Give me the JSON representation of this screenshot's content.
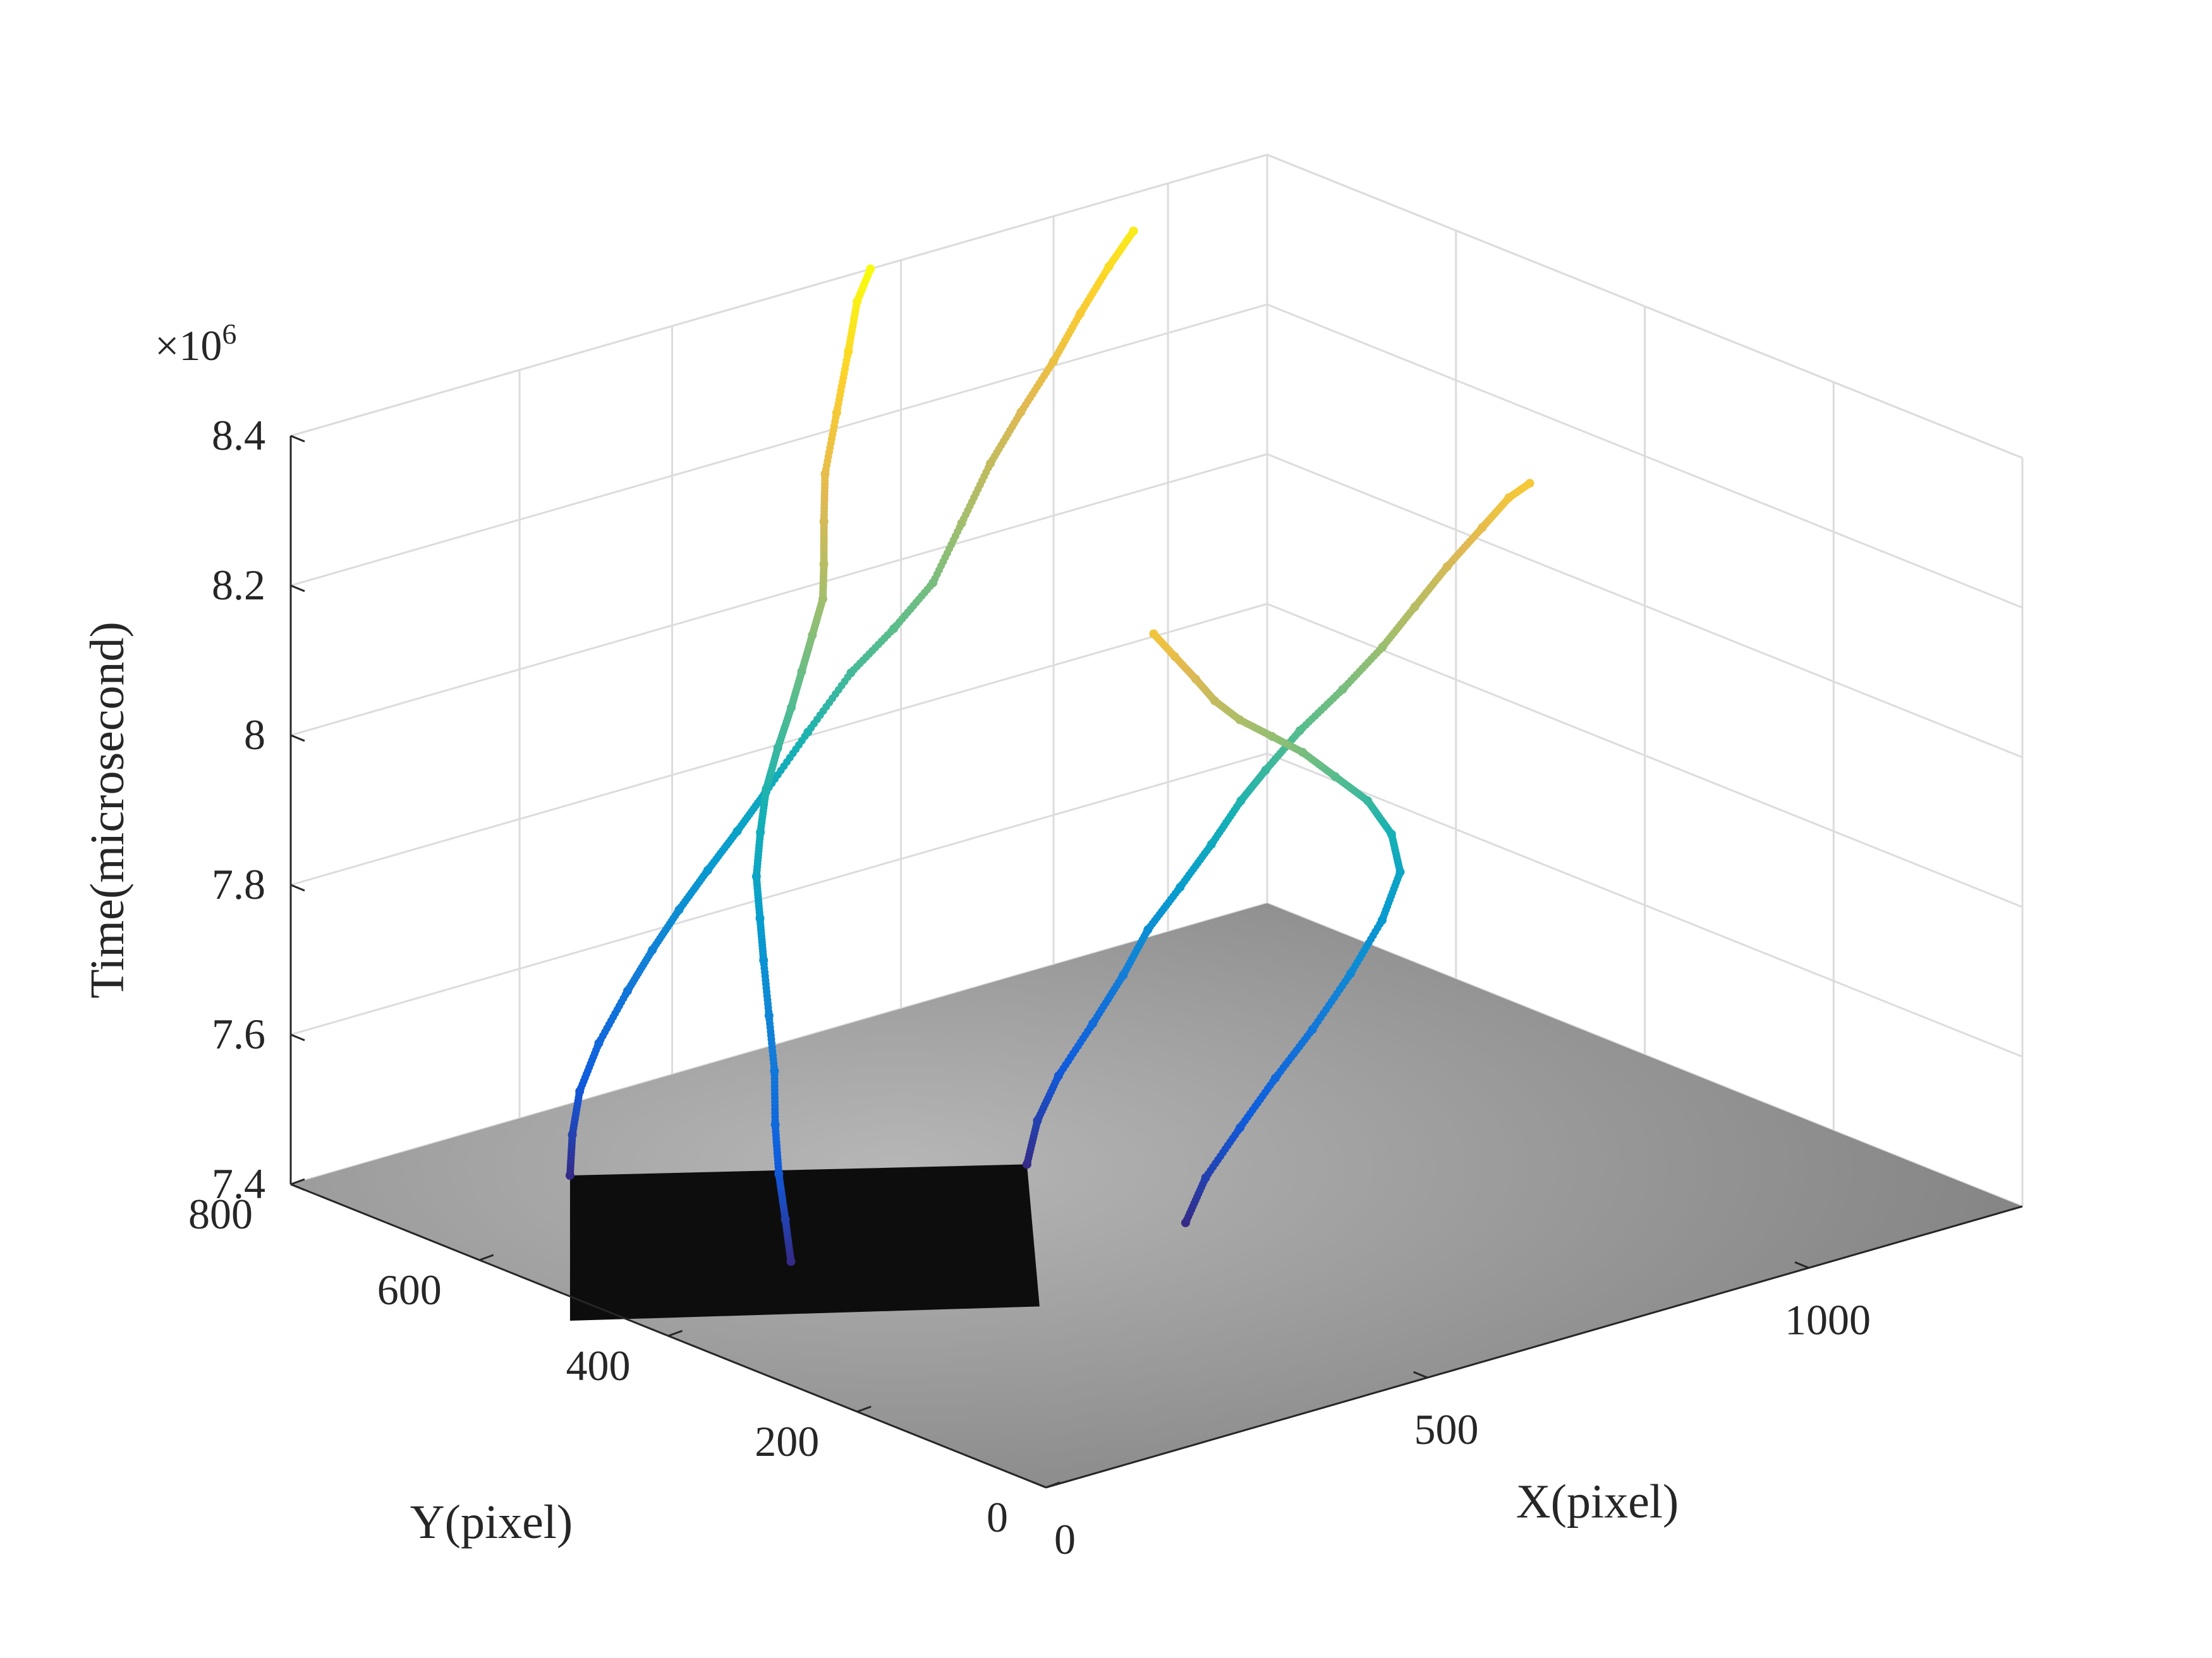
{
  "chart_data": {
    "type": "scatter3d",
    "xlabel": "X(pixel)",
    "ylabel": "Y(pixel)",
    "zlabel": "Time(microsecond)",
    "zexponent": "×10",
    "zexponent_power": "6",
    "xlim": [
      0,
      1280
    ],
    "ylim": [
      0,
      800
    ],
    "zlim": [
      7.4,
      8.4
    ],
    "xticks": [
      0,
      500,
      1000
    ],
    "xtick_labels": [
      "0",
      "500",
      "1000"
    ],
    "yticks": [
      0,
      200,
      400,
      600,
      800
    ],
    "ytick_labels": [
      "0",
      "200",
      "400",
      "600",
      "800"
    ],
    "zticks": [
      7.4,
      7.6,
      7.8,
      8.0,
      8.2,
      8.4
    ],
    "ztick_labels": [
      "7.4",
      "7.6",
      "7.8",
      "8",
      "8.2",
      "8.4"
    ],
    "grid": true,
    "colormap": "parula",
    "color_by": "time",
    "colors": {
      "floor_light": "#b0b0b0",
      "floor_dark": "#7d7d7d",
      "object_face": "#0d0d0d",
      "grid": "#dcdcdc",
      "axis": "#262626"
    },
    "floor_object": {
      "corners_xy": [
        [
          230,
          690
        ],
        [
          600,
          505
        ],
        [
          610,
          345
        ],
        [
          235,
          460
        ]
      ]
    },
    "series": [
      {
        "points": [
          [
            230,
            690,
            7.4
          ],
          [
            238,
            694,
            7.45
          ],
          [
            255,
            700,
            7.5
          ],
          [
            290,
            708,
            7.55
          ],
          [
            340,
            718,
            7.6
          ],
          [
            380,
            724,
            7.64
          ],
          [
            420,
            728,
            7.68
          ],
          [
            460,
            730,
            7.72
          ],
          [
            500,
            731,
            7.76
          ],
          [
            540,
            733,
            7.8
          ],
          [
            600,
            737,
            7.86
          ],
          [
            660,
            740,
            7.92
          ],
          [
            720,
            743,
            7.96
          ],
          [
            780,
            750,
            8.0
          ],
          [
            830,
            760,
            8.06
          ],
          [
            880,
            770,
            8.12
          ],
          [
            930,
            778,
            8.17
          ],
          [
            980,
            784,
            8.22
          ],
          [
            1020,
            788,
            8.27
          ],
          [
            1060,
            790,
            8.32
          ],
          [
            1090,
            788,
            8.36
          ]
        ]
      },
      {
        "points": [
          [
            600,
            505,
            7.4
          ],
          [
            620,
            510,
            7.45
          ],
          [
            650,
            512,
            7.5
          ],
          [
            690,
            508,
            7.56
          ],
          [
            720,
            500,
            7.62
          ],
          [
            740,
            490,
            7.68
          ],
          [
            760,
            472,
            7.74
          ],
          [
            780,
            455,
            7.8
          ],
          [
            800,
            440,
            7.86
          ],
          [
            820,
            430,
            7.9
          ],
          [
            850,
            418,
            7.95
          ],
          [
            890,
            405,
            8.0
          ],
          [
            930,
            395,
            8.05
          ],
          [
            960,
            385,
            8.1
          ],
          [
            990,
            375,
            8.15
          ],
          [
            1020,
            362,
            8.2
          ],
          [
            1040,
            350,
            8.24
          ],
          [
            1055,
            340,
            8.26
          ]
        ]
      },
      {
        "points": [
          [
            610,
            345,
            7.4
          ],
          [
            640,
            348,
            7.45
          ],
          [
            690,
            352,
            7.5
          ],
          [
            740,
            355,
            7.55
          ],
          [
            790,
            356,
            7.6
          ],
          [
            840,
            356,
            7.66
          ],
          [
            880,
            355,
            7.72
          ],
          [
            900,
            352,
            7.78
          ],
          [
            880,
            345,
            7.84
          ],
          [
            840,
            338,
            7.9
          ],
          [
            790,
            332,
            7.95
          ],
          [
            740,
            326,
            8.0
          ],
          [
            690,
            318,
            8.04
          ],
          [
            640,
            312,
            8.08
          ],
          [
            600,
            306,
            8.12
          ],
          [
            570,
            302,
            8.16
          ],
          [
            540,
            300,
            8.2
          ],
          [
            510,
            298,
            8.24
          ]
        ]
      },
      {
        "points": [
          [
            235,
            460,
            7.4
          ],
          [
            240,
            470,
            7.45
          ],
          [
            250,
            485,
            7.5
          ],
          [
            270,
            505,
            7.55
          ],
          [
            300,
            530,
            7.6
          ],
          [
            330,
            560,
            7.65
          ],
          [
            360,
            590,
            7.7
          ],
          [
            380,
            610,
            7.74
          ],
          [
            400,
            630,
            7.78
          ],
          [
            430,
            650,
            7.82
          ],
          [
            460,
            668,
            7.86
          ],
          [
            490,
            680,
            7.9
          ],
          [
            520,
            690,
            7.94
          ],
          [
            540,
            695,
            7.98
          ],
          [
            560,
            700,
            8.02
          ],
          [
            580,
            705,
            8.06
          ],
          [
            590,
            712,
            8.1
          ],
          [
            600,
            720,
            8.15
          ],
          [
            620,
            735,
            8.2
          ],
          [
            660,
            755,
            8.26
          ],
          [
            700,
            775,
            8.32
          ],
          [
            730,
            790,
            8.37
          ],
          [
            760,
            800,
            8.4
          ]
        ]
      }
    ]
  }
}
